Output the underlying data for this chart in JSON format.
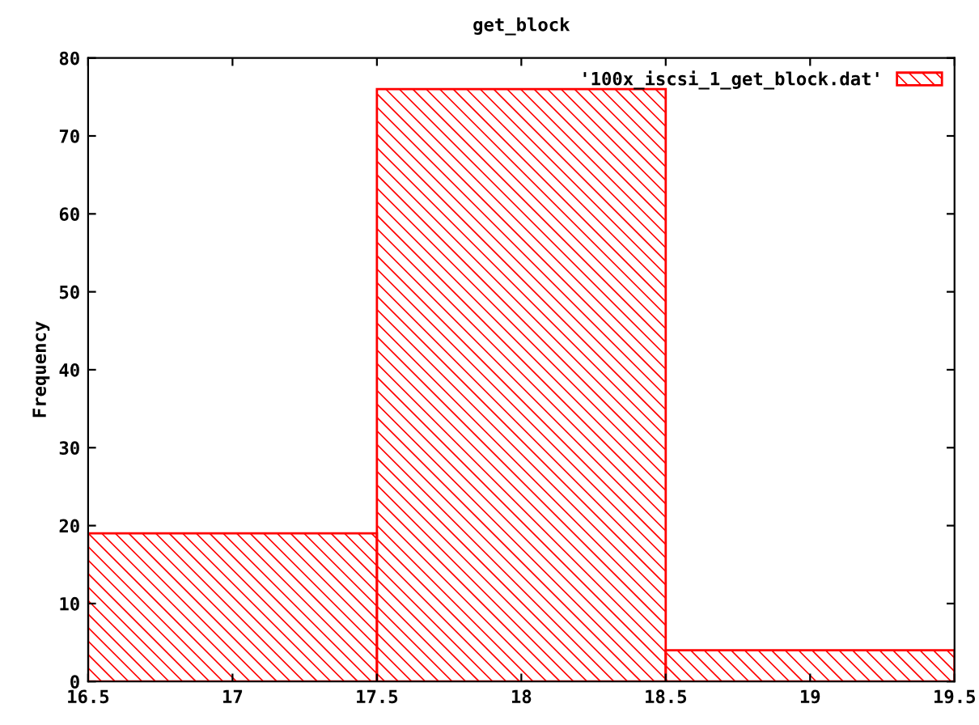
{
  "chart_data": {
    "type": "histogram",
    "title": "get_block",
    "ylabel": "Frequency",
    "bins": [
      16.5,
      17.5,
      18.5,
      19.5
    ],
    "series": [
      {
        "name": "'100x_iscsi_1_get_block.dat'",
        "color": "#ff0000",
        "values": [
          19,
          76,
          4
        ]
      }
    ],
    "xlim": [
      16.5,
      19.5
    ],
    "xticks": [
      16.5,
      17,
      17.5,
      18,
      18.5,
      19,
      19.5
    ],
    "ylim": [
      0,
      80
    ],
    "yticks": [
      0,
      10,
      20,
      30,
      40,
      50,
      60,
      70,
      80
    ],
    "grid": false,
    "legend": "top right"
  }
}
